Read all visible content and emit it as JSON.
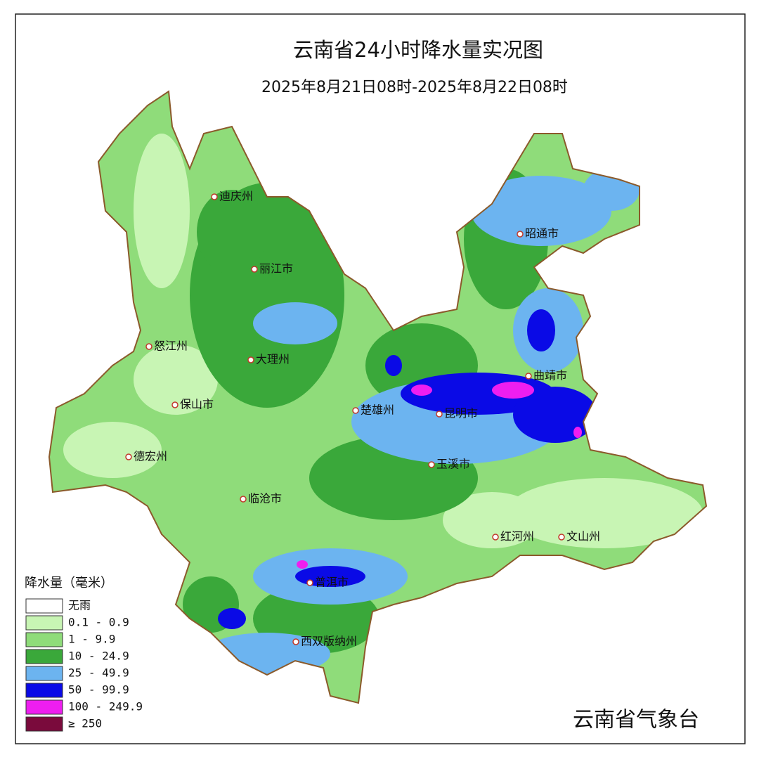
{
  "title": "云南省24小时降水量实况图",
  "subtitle": "2025年8月21日08时-2025年8月22日08时",
  "legend": {
    "title": "降水量（毫米）",
    "items": [
      {
        "label": "无雨",
        "color": "#ffffff"
      },
      {
        "label": "0.1 - 0.9",
        "color": "#c8f5b4"
      },
      {
        "label": "1 -  9.9",
        "color": "#8fdc7a"
      },
      {
        "label": "10 - 24.9",
        "color": "#3aa83a"
      },
      {
        "label": "25 - 49.9",
        "color": "#6cb4f0"
      },
      {
        "label": "50 - 99.9",
        "color": "#0a0ae6"
      },
      {
        "label": "100 - 249.9",
        "color": "#ee1ef0"
      },
      {
        "label": "≥ 250",
        "color": "#7a0a3c"
      }
    ]
  },
  "cities": [
    "迪庆州",
    "丽江市",
    "怒江州",
    "大理州",
    "保山市",
    "楚雄州",
    "昆明市",
    "曲靖市",
    "昭通市",
    "德宏州",
    "临沧市",
    "玉溪市",
    "红河州",
    "文山州",
    "普洱市",
    "西双版纳州"
  ],
  "source": "云南省气象台"
}
